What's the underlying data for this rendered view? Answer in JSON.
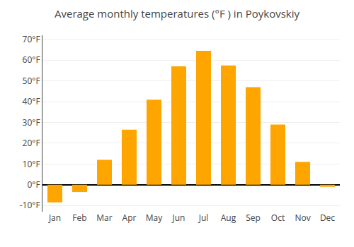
{
  "chart_data": {
    "type": "bar",
    "title": "Average monthly temperatures (°F ) in Poykovskiy",
    "categories": [
      "Jan",
      "Feb",
      "Mar",
      "Apr",
      "May",
      "Jun",
      "Jul",
      "Aug",
      "Sep",
      "Oct",
      "Nov",
      "Dec"
    ],
    "values": [
      -8.5,
      -3.5,
      12,
      26.5,
      41,
      57,
      64.5,
      57.5,
      47,
      29,
      11,
      -1
    ],
    "color": "#FFA500",
    "ylim": [
      -13,
      72
    ],
    "yticks": [
      {
        "value": -10,
        "label": "-10°F"
      },
      {
        "value": 0,
        "label": "0°F"
      },
      {
        "value": 10,
        "label": "10°F"
      },
      {
        "value": 20,
        "label": "20°F"
      },
      {
        "value": 30,
        "label": "30°F"
      },
      {
        "value": 40,
        "label": "40°F"
      },
      {
        "value": 50,
        "label": "50°F"
      },
      {
        "value": 60,
        "label": "60°F"
      },
      {
        "value": 70,
        "label": "70°F"
      }
    ],
    "grid": true
  }
}
